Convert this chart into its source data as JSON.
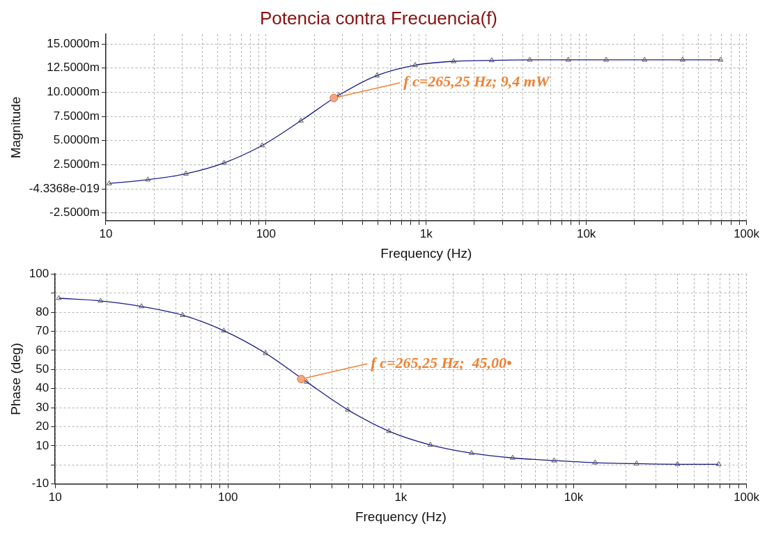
{
  "chart_data": [
    {
      "type": "line",
      "title": "Potencia contra Frecuencia(f)",
      "xlabel": "Frequency (Hz)",
      "ylabel": "Magnitude",
      "log": "x",
      "grid": true,
      "legend": false,
      "marker": "triangle",
      "line_style": "solid",
      "xlim": [
        10,
        100000
      ],
      "xticks": [
        {
          "value": 10,
          "label": "10"
        },
        {
          "value": 20,
          "label": null
        },
        {
          "value": 30,
          "label": null
        },
        {
          "value": 40,
          "label": null
        },
        {
          "value": 50,
          "label": null
        },
        {
          "value": 60,
          "label": null
        },
        {
          "value": 70,
          "label": null
        },
        {
          "value": 80,
          "label": null
        },
        {
          "value": 90,
          "label": null
        },
        {
          "value": 100,
          "label": "100"
        },
        {
          "value": 200,
          "label": null
        },
        {
          "value": 300,
          "label": null
        },
        {
          "value": 400,
          "label": null
        },
        {
          "value": 500,
          "label": null
        },
        {
          "value": 600,
          "label": null
        },
        {
          "value": 700,
          "label": null
        },
        {
          "value": 800,
          "label": null
        },
        {
          "value": 900,
          "label": null
        },
        {
          "value": 1000,
          "label": "1k"
        },
        {
          "value": 2000,
          "label": null
        },
        {
          "value": 3000,
          "label": null
        },
        {
          "value": 4000,
          "label": null
        },
        {
          "value": 5000,
          "label": null
        },
        {
          "value": 6000,
          "label": null
        },
        {
          "value": 7000,
          "label": null
        },
        {
          "value": 8000,
          "label": null
        },
        {
          "value": 9000,
          "label": null
        },
        {
          "value": 10000,
          "label": "10k"
        },
        {
          "value": 20000,
          "label": null
        },
        {
          "value": 30000,
          "label": null
        },
        {
          "value": 40000,
          "label": null
        },
        {
          "value": 50000,
          "label": null
        },
        {
          "value": 60000,
          "label": null
        },
        {
          "value": 70000,
          "label": null
        },
        {
          "value": 80000,
          "label": null
        },
        {
          "value": 90000,
          "label": null
        },
        {
          "value": 100000,
          "label": "100k"
        }
      ],
      "ylim": [
        -3.3,
        16
      ],
      "yticks": [
        {
          "value": -2.5,
          "label": "-2.5000m"
        },
        {
          "value": 0,
          "label": "-4.3368e-019"
        },
        {
          "value": 2.5,
          "label": "2.5000m"
        },
        {
          "value": 5,
          "label": "5.0000m"
        },
        {
          "value": 7.5,
          "label": "7.5000m"
        },
        {
          "value": 10,
          "label": "10.0000m"
        },
        {
          "value": 12.5,
          "label": "12.5000m"
        },
        {
          "value": 15,
          "label": "15.0000m"
        }
      ],
      "x": [
        10.5,
        18.3,
        31.6,
        54.7,
        94.6,
        165,
        285,
        493,
        853,
        1483,
        2566,
        4436,
        7708,
        13300,
        23100,
        39900,
        69000
      ],
      "series": [
        {
          "color": "#1a1a8c",
          "values": [
            0.56,
            0.95,
            1.56,
            2.68,
            4.49,
            7.05,
            9.7,
            11.73,
            12.8,
            13.2,
            13.3,
            13.35,
            13.35,
            13.35,
            13.35,
            13.35,
            13.35
          ]
        }
      ],
      "annotations": [
        {
          "text": "f c=265,25 Hz; 9,4 mW",
          "x": 265.25,
          "y": 9.4
        }
      ]
    },
    {
      "type": "line",
      "xlabel": "Frequency (Hz)",
      "ylabel": "Phase (deg)",
      "log": "x",
      "grid": true,
      "legend": false,
      "marker": "triangle",
      "line_style": "solid",
      "xlim": [
        10,
        100000
      ],
      "xticks": [
        10,
        {
          "value": 20,
          "label": null
        },
        {
          "value": 30,
          "label": null
        },
        {
          "value": 40,
          "label": null
        },
        {
          "value": 50,
          "label": null
        },
        {
          "value": 60,
          "label": null
        },
        {
          "value": 70,
          "label": null
        },
        {
          "value": 80,
          "label": null
        },
        {
          "value": 90,
          "label": null
        },
        100,
        {
          "value": 200,
          "label": null
        },
        {
          "value": 300,
          "label": null
        },
        {
          "value": 400,
          "label": null
        },
        {
          "value": 500,
          "label": null
        },
        {
          "value": 600,
          "label": null
        },
        {
          "value": 700,
          "label": null
        },
        {
          "value": 800,
          "label": null
        },
        {
          "value": 900,
          "label": null
        },
        {
          "value": 1000,
          "label": "1k"
        },
        {
          "value": 2000,
          "label": null
        },
        {
          "value": 3000,
          "label": null
        },
        {
          "value": 4000,
          "label": null
        },
        {
          "value": 5000,
          "label": null
        },
        {
          "value": 6000,
          "label": null
        },
        {
          "value": 7000,
          "label": null
        },
        {
          "value": 8000,
          "label": null
        },
        {
          "value": 9000,
          "label": null
        },
        {
          "value": 10000,
          "label": "10k"
        },
        {
          "value": 20000,
          "label": null
        },
        {
          "value": 30000,
          "label": null
        },
        {
          "value": 40000,
          "label": null
        },
        {
          "value": 50000,
          "label": null
        },
        {
          "value": 60000,
          "label": null
        },
        {
          "value": 70000,
          "label": null
        },
        {
          "value": 80000,
          "label": null
        },
        {
          "value": 90000,
          "label": null
        },
        {
          "value": 100000,
          "label": "100k"
        }
      ],
      "ylim": [
        -10,
        100
      ],
      "yticks": [
        -10,
        {
          "value": 0,
          "label": null
        },
        10,
        20,
        30,
        40,
        50,
        60,
        70,
        80,
        {
          "value": 90,
          "label": null
        },
        100
      ],
      "x": [
        10.5,
        18.3,
        31.6,
        54.7,
        94.6,
        165,
        285,
        493,
        853,
        1483,
        2566,
        4436,
        7708,
        13300,
        23100,
        39900,
        69000
      ],
      "series": [
        {
          "color": "#1a1a8c",
          "values": [
            87.3,
            85.9,
            83,
            78.4,
            70.3,
            58.5,
            43.5,
            28.9,
            17.7,
            10.5,
            6.2,
            3.7,
            2.3,
            1.2,
            0.7,
            0.4,
            0.4
          ]
        }
      ],
      "annotations": [
        {
          "text": "f c=265,25 Hz;  45,00•",
          "x": 265.25,
          "y": 45
        }
      ]
    }
  ]
}
